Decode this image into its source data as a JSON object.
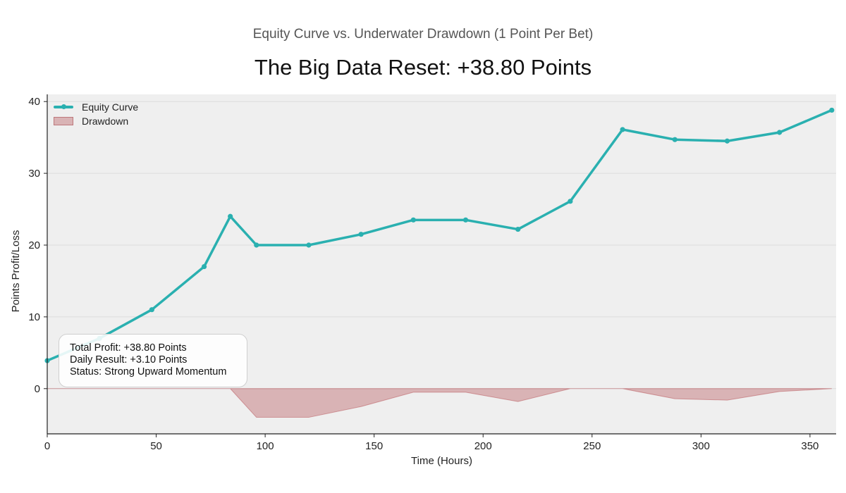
{
  "header": {
    "subtitle": "Equity Curve vs. Underwater Drawdown (1 Point Per Bet)",
    "title": "The Big Data Reset: +38.80 Points"
  },
  "info_box": {
    "line1": "Total Profit: +38.80 Points",
    "line2": "Daily Result: +3.10 Points",
    "line3": "Status: Strong Upward Momentum"
  },
  "colors": {
    "equity": "#2ab0b0",
    "drawdown_fill": "#b95a5f",
    "plot_bg": "#efefef"
  },
  "chart_data": {
    "type": "line",
    "title": "The Big Data Reset: +38.80 Points",
    "subtitle": "Equity Curve vs. Underwater Drawdown (1 Point Per Bet)",
    "xlabel": "Time (Hours)",
    "ylabel": "Points Profit/Loss",
    "xlim": [
      0,
      362
    ],
    "ylim": [
      -6.3,
      41
    ],
    "xticks": [
      0,
      50,
      100,
      150,
      200,
      250,
      300,
      350
    ],
    "yticks": [
      0,
      10,
      20,
      30,
      40
    ],
    "grid": "horizontal",
    "legend_position": "top-left",
    "series": [
      {
        "name": "Equity Curve",
        "type": "line",
        "x": [
          0,
          24,
          48,
          72,
          84,
          96,
          120,
          144,
          168,
          192,
          216,
          240,
          264,
          288,
          312,
          336,
          360
        ],
        "y": [
          3.9,
          7.0,
          11.0,
          17.0,
          24.0,
          20.0,
          20.0,
          21.5,
          23.5,
          23.5,
          22.2,
          26.1,
          36.1,
          34.7,
          34.5,
          35.7,
          38.8
        ]
      },
      {
        "name": "Drawdown",
        "type": "area",
        "x": [
          0,
          24,
          48,
          72,
          84,
          96,
          120,
          144,
          168,
          192,
          216,
          240,
          264,
          288,
          312,
          336,
          360
        ],
        "y": [
          0,
          0,
          0,
          0,
          0,
          -4.0,
          -4.0,
          -2.5,
          -0.5,
          -0.5,
          -1.8,
          0,
          0,
          -1.4,
          -1.6,
          -0.4,
          0
        ]
      }
    ]
  }
}
